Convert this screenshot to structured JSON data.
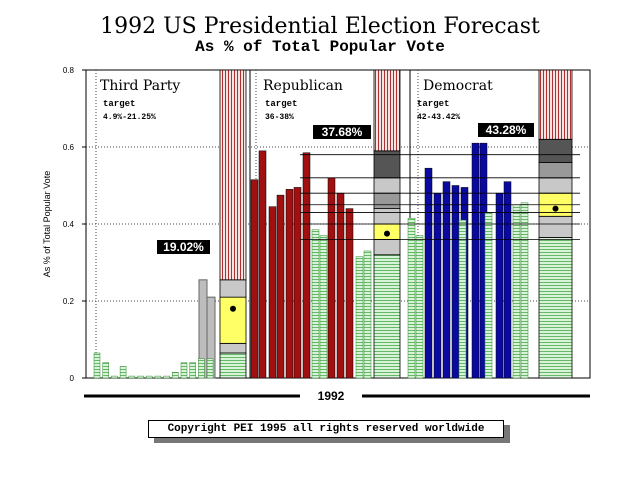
{
  "chart_data": {
    "type": "bar",
    "title": "1992 US Presidential Election Forecast",
    "subtitle": "As % of Total Popular Vote",
    "ylabel": "As % of Total Popular Vote",
    "xlabel": "1992",
    "ylim": [
      0,
      0.8
    ],
    "yticks": [
      "0",
      "0.2",
      "0.4",
      "0.6",
      "0.8"
    ],
    "grid": true,
    "panels": [
      {
        "name": "Third Party",
        "target_label": "target",
        "target_range": "4.9%-21.25%",
        "forecast_label": "19.02%",
        "point": 0.18,
        "green_bars": [
          0.065,
          0.04,
          0.005,
          0.03,
          0.005,
          0.005,
          0.005,
          0.005,
          0.005,
          0.015,
          0.04,
          0.04,
          0.05,
          0.05
        ],
        "gray_bars": [
          0.255,
          0.21
        ],
        "colored_bars": [],
        "band": [
          {
            "kind": "green",
            "from": 0.0,
            "to": 0.065
          },
          {
            "kind": "light-gray",
            "from": 0.065,
            "to": 0.09
          },
          {
            "kind": "yellow",
            "from": 0.09,
            "to": 0.21
          },
          {
            "kind": "light-gray",
            "from": 0.21,
            "to": 0.255
          },
          {
            "kind": "red-stripe",
            "from": 0.255,
            "to": 0.8
          }
        ]
      },
      {
        "name": "Republican",
        "target_label": "target",
        "target_range": "36-38%",
        "forecast_label": "37.68%",
        "point": 0.375,
        "colored_bars": [
          0.515,
          0.59,
          0.445,
          0.475,
          0.49,
          0.495,
          0.585,
          0.52,
          0.48,
          0.44
        ],
        "green_bars": [
          0.385,
          0.37,
          0.315,
          0.33
        ],
        "gray_bars": [],
        "band": [
          {
            "kind": "green",
            "from": 0.0,
            "to": 0.32
          },
          {
            "kind": "light-gray",
            "from": 0.32,
            "to": 0.36
          },
          {
            "kind": "yellow",
            "from": 0.36,
            "to": 0.4
          },
          {
            "kind": "light-gray",
            "from": 0.4,
            "to": 0.44
          },
          {
            "kind": "mid-gray",
            "from": 0.44,
            "to": 0.48
          },
          {
            "kind": "light-gray",
            "from": 0.48,
            "to": 0.52
          },
          {
            "kind": "dark-gray",
            "from": 0.52,
            "to": 0.59
          },
          {
            "kind": "red-stripe",
            "from": 0.59,
            "to": 0.8
          }
        ]
      },
      {
        "name": "Democrat",
        "target_label": "target",
        "target_range": "42-43.42%",
        "forecast_label": "43.28%",
        "point": 0.44,
        "colored_bars": [
          0.545,
          0.48,
          0.51,
          0.5,
          0.495,
          0.61,
          0.61,
          0.48,
          0.51
        ],
        "green_bars": [
          0.415,
          0.37,
          0.41,
          0.43,
          0.45,
          0.455
        ],
        "gray_bars": [],
        "band": [
          {
            "kind": "green",
            "from": 0.0,
            "to": 0.365
          },
          {
            "kind": "light-gray",
            "from": 0.365,
            "to": 0.42
          },
          {
            "kind": "yellow",
            "from": 0.42,
            "to": 0.48
          },
          {
            "kind": "light-gray",
            "from": 0.48,
            "to": 0.52
          },
          {
            "kind": "mid-gray",
            "from": 0.52,
            "to": 0.56
          },
          {
            "kind": "dark-gray",
            "from": 0.56,
            "to": 0.62
          },
          {
            "kind": "red-stripe",
            "from": 0.62,
            "to": 0.8
          }
        ]
      }
    ],
    "reference_lines": [
      0.58,
      0.52,
      0.48,
      0.45,
      0.43,
      0.4,
      0.36
    ],
    "colors": {
      "republican": "#a01010",
      "democrat": "#0a0aa0",
      "green": "#b9e8b9",
      "gray": "#a8a8a8",
      "yellow": "#ffff66",
      "red_stripe": "#d08080"
    }
  },
  "footer": {
    "copyright": "Copyright PEI 1995 all rights reserved worldwide"
  }
}
